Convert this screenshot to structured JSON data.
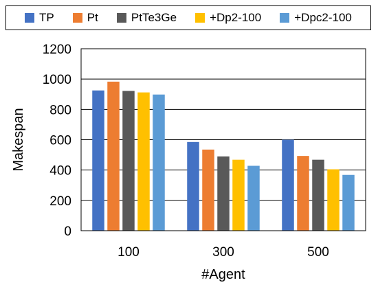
{
  "chart_data": {
    "type": "bar",
    "title": "",
    "xlabel": "#Agent",
    "ylabel": "Makespan",
    "categories": [
      "100",
      "300",
      "500"
    ],
    "ylim": [
      0,
      1200
    ],
    "yticks": [
      0,
      200,
      400,
      600,
      800,
      1000,
      1200
    ],
    "grid": true,
    "legend_position": "top",
    "series": [
      {
        "name": "TP",
        "color": "#4472C4",
        "values": [
          925,
          585,
          600
        ]
      },
      {
        "name": "Pt",
        "color": "#ED7D31",
        "values": [
          983,
          535,
          493
        ]
      },
      {
        "name": "PtTe3Ge",
        "color": "#595959",
        "values": [
          922,
          490,
          468
        ]
      },
      {
        "name": "+Dp2-100",
        "color": "#FFC000",
        "values": [
          912,
          468,
          405
        ]
      },
      {
        "name": "+Dpc2-100",
        "color": "#5B9BD5",
        "values": [
          898,
          428,
          368
        ]
      }
    ]
  }
}
